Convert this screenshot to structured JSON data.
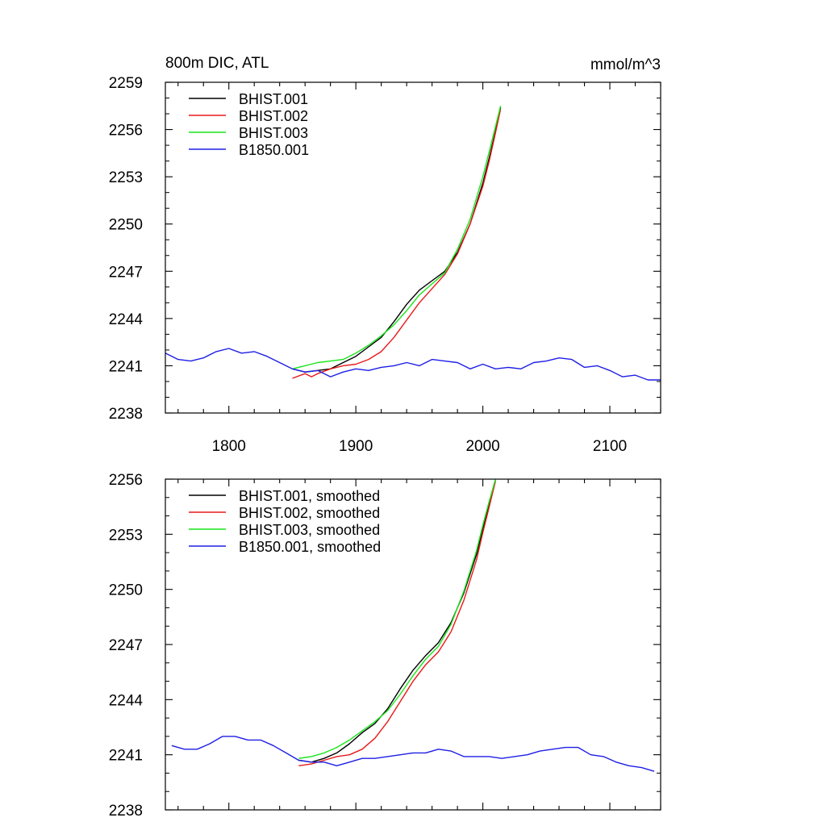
{
  "chart_data": [
    {
      "type": "line",
      "title": "800m DIC, ATL",
      "units": "mmol/m^3",
      "xlim": [
        1750,
        2140
      ],
      "ylim": [
        2238,
        2259
      ],
      "xticks": [
        1800,
        1900,
        2000,
        2100
      ],
      "yticks": [
        2238,
        2241,
        2244,
        2247,
        2250,
        2253,
        2256,
        2259
      ],
      "xtick_labels_shown": true,
      "legend_position": "top-left",
      "series": [
        {
          "name": "BHIST.001",
          "color": "#000000",
          "x": [
            1850,
            1860,
            1870,
            1880,
            1890,
            1900,
            1910,
            1920,
            1930,
            1940,
            1950,
            1960,
            1970,
            1980,
            1990,
            2000,
            2005,
            2010,
            2014
          ],
          "y": [
            2240.8,
            2240.6,
            2240.7,
            2240.8,
            2241.2,
            2241.6,
            2242.2,
            2242.8,
            2243.8,
            2244.9,
            2245.8,
            2246.4,
            2247.0,
            2248.2,
            2250.0,
            2252.6,
            2254.2,
            2255.9,
            2257.4
          ]
        },
        {
          "name": "BHIST.002",
          "color": "#e8191a",
          "x": [
            1850,
            1860,
            1865,
            1870,
            1880,
            1890,
            1900,
            1910,
            1920,
            1930,
            1940,
            1950,
            1960,
            1970,
            1980,
            1990,
            2000,
            2005,
            2010,
            2014
          ],
          "y": [
            2240.2,
            2240.5,
            2240.3,
            2240.5,
            2240.8,
            2241.0,
            2241.1,
            2241.4,
            2241.9,
            2242.8,
            2243.9,
            2245.0,
            2245.9,
            2246.8,
            2248.1,
            2250.0,
            2252.4,
            2254.0,
            2255.8,
            2257.3
          ]
        },
        {
          "name": "BHIST.003",
          "color": "#19e619",
          "x": [
            1850,
            1860,
            1870,
            1880,
            1890,
            1900,
            1910,
            1920,
            1930,
            1940,
            1950,
            1960,
            1970,
            1980,
            1990,
            2000,
            2005,
            2010,
            2014
          ],
          "y": [
            2240.8,
            2241.0,
            2241.2,
            2241.3,
            2241.4,
            2241.8,
            2242.3,
            2242.9,
            2243.6,
            2244.5,
            2245.5,
            2246.2,
            2246.9,
            2248.4,
            2250.3,
            2253.0,
            2254.6,
            2256.2,
            2257.5
          ]
        },
        {
          "name": "B1850.001",
          "color": "#1e1ee6",
          "x": [
            1750,
            1760,
            1770,
            1780,
            1790,
            1800,
            1810,
            1820,
            1830,
            1840,
            1850,
            1860,
            1870,
            1880,
            1890,
            1900,
            1910,
            1920,
            1930,
            1940,
            1950,
            1960,
            1970,
            1980,
            1990,
            2000,
            2010,
            2020,
            2030,
            2040,
            2050,
            2060,
            2070,
            2080,
            2090,
            2100,
            2110,
            2120,
            2130,
            2140
          ],
          "y": [
            2241.8,
            2241.4,
            2241.3,
            2241.5,
            2241.9,
            2242.1,
            2241.8,
            2241.9,
            2241.6,
            2241.2,
            2240.8,
            2240.6,
            2240.7,
            2240.3,
            2240.6,
            2240.8,
            2240.7,
            2240.9,
            2241.0,
            2241.2,
            2241.0,
            2241.4,
            2241.3,
            2241.2,
            2240.8,
            2241.1,
            2240.8,
            2240.9,
            2240.8,
            2241.2,
            2241.3,
            2241.5,
            2241.4,
            2240.9,
            2241.0,
            2240.7,
            2240.3,
            2240.4,
            2240.1,
            2240.1
          ]
        }
      ]
    },
    {
      "type": "line",
      "title": "",
      "units": "",
      "xlim": [
        1750,
        2140
      ],
      "ylim": [
        2238,
        2256
      ],
      "xticks": [
        1800,
        1900,
        2000,
        2100
      ],
      "yticks": [
        2238,
        2241,
        2244,
        2247,
        2250,
        2253,
        2256
      ],
      "xtick_labels_shown": false,
      "legend_position": "top-left",
      "series": [
        {
          "name": "BHIST.001, smoothed",
          "color": "#000000",
          "x": [
            1855,
            1865,
            1875,
            1885,
            1895,
            1905,
            1915,
            1925,
            1935,
            1945,
            1955,
            1965,
            1975,
            1985,
            1995,
            2000,
            2005,
            2010
          ],
          "y": [
            2240.7,
            2240.6,
            2240.8,
            2241.1,
            2241.6,
            2242.2,
            2242.7,
            2243.5,
            2244.6,
            2245.6,
            2246.4,
            2247.1,
            2248.2,
            2249.8,
            2251.9,
            2253.3,
            2254.7,
            2256.0
          ]
        },
        {
          "name": "BHIST.002, smoothed",
          "color": "#e8191a",
          "x": [
            1855,
            1865,
            1875,
            1885,
            1895,
            1905,
            1915,
            1925,
            1935,
            1945,
            1955,
            1965,
            1975,
            1985,
            1995,
            2000,
            2005,
            2010
          ],
          "y": [
            2240.4,
            2240.5,
            2240.7,
            2240.9,
            2241.0,
            2241.3,
            2241.9,
            2242.8,
            2243.9,
            2245.0,
            2245.9,
            2246.6,
            2247.7,
            2249.4,
            2251.6,
            2253.1,
            2254.5,
            2255.9
          ]
        },
        {
          "name": "BHIST.003, smoothed",
          "color": "#19e619",
          "x": [
            1855,
            1865,
            1875,
            1885,
            1895,
            1905,
            1915,
            1925,
            1935,
            1945,
            1955,
            1965,
            1975,
            1985,
            1995,
            2000,
            2005,
            2010
          ],
          "y": [
            2240.8,
            2240.9,
            2241.1,
            2241.4,
            2241.8,
            2242.3,
            2242.8,
            2243.4,
            2244.3,
            2245.3,
            2246.2,
            2246.9,
            2248.1,
            2249.9,
            2252.1,
            2253.5,
            2254.8,
            2256.0
          ]
        },
        {
          "name": "B1850.001, smoothed",
          "color": "#1e1ee6",
          "x": [
            1755,
            1765,
            1775,
            1785,
            1795,
            1805,
            1815,
            1825,
            1835,
            1845,
            1855,
            1865,
            1875,
            1885,
            1895,
            1905,
            1915,
            1925,
            1935,
            1945,
            1955,
            1965,
            1975,
            1985,
            1995,
            2005,
            2015,
            2025,
            2035,
            2045,
            2055,
            2065,
            2075,
            2085,
            2095,
            2105,
            2115,
            2125,
            2135
          ],
          "y": [
            2241.5,
            2241.3,
            2241.3,
            2241.6,
            2242.0,
            2242.0,
            2241.8,
            2241.8,
            2241.5,
            2241.1,
            2240.7,
            2240.6,
            2240.6,
            2240.4,
            2240.6,
            2240.8,
            2240.8,
            2240.9,
            2241.0,
            2241.1,
            2241.1,
            2241.3,
            2241.2,
            2240.9,
            2240.9,
            2240.9,
            2240.8,
            2240.9,
            2241.0,
            2241.2,
            2241.3,
            2241.4,
            2241.4,
            2241.0,
            2240.9,
            2240.6,
            2240.4,
            2240.3,
            2240.1
          ]
        }
      ]
    }
  ]
}
